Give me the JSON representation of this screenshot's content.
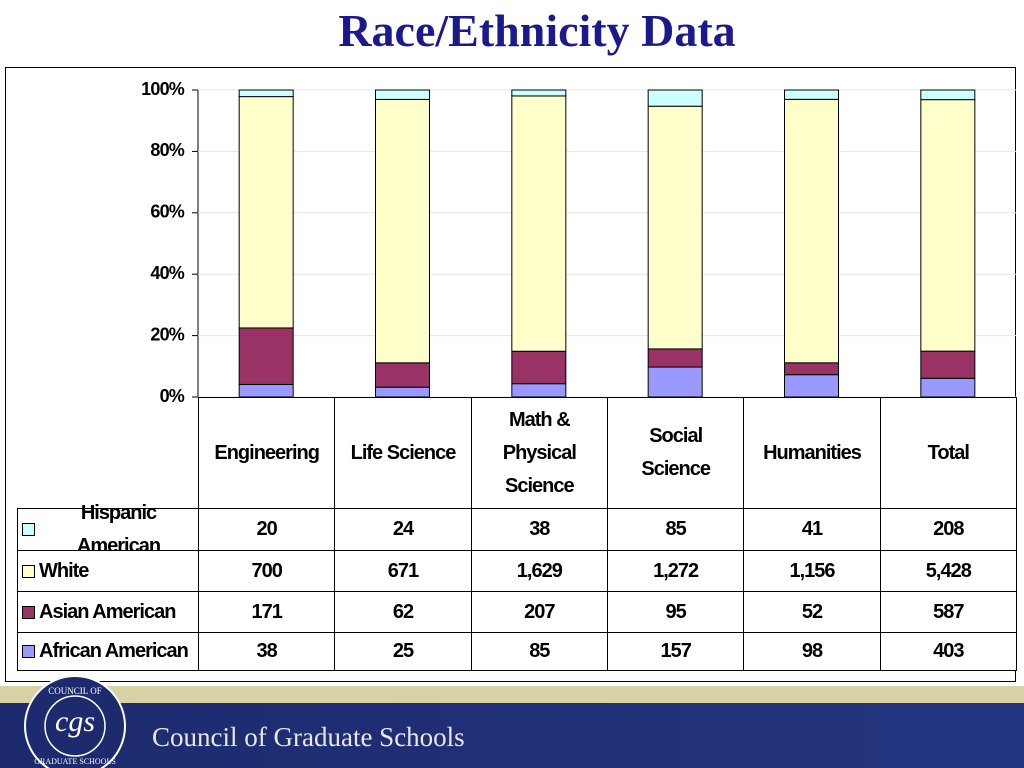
{
  "chart_data": {
    "type": "bar",
    "stacked": "percent",
    "title": "Race/Ethnicity Data",
    "categories": [
      "Engineering",
      "Life Science",
      "Math & Physical Science",
      "Social Science",
      "Humanities",
      "Total"
    ],
    "series": [
      {
        "name": "Hispanic American",
        "color": "#ccffff",
        "values": [
          20,
          24,
          38,
          85,
          41,
          208
        ],
        "value_labels": [
          "20",
          "24",
          "38",
          "85",
          "41",
          "208"
        ]
      },
      {
        "name": "White",
        "color": "#ffffcc",
        "values": [
          700,
          671,
          1629,
          1272,
          1156,
          5428
        ],
        "value_labels": [
          "700",
          "671",
          "1,629",
          "1,272",
          "1,156",
          "5,428"
        ]
      },
      {
        "name": "Asian American",
        "color": "#993366",
        "values": [
          171,
          62,
          207,
          95,
          52,
          587
        ],
        "value_labels": [
          "171",
          "62",
          "207",
          "95",
          "52",
          "587"
        ]
      },
      {
        "name": "African American",
        "color": "#9999ff",
        "values": [
          38,
          25,
          85,
          157,
          98,
          403
        ],
        "value_labels": [
          "38",
          "25",
          "85",
          "157",
          "98",
          "403"
        ]
      }
    ],
    "ylim": [
      0,
      100
    ],
    "yticks": [
      {
        "value": 0,
        "label": "0%"
      },
      {
        "value": 20,
        "label": "20%"
      },
      {
        "value": 40,
        "label": "40%"
      },
      {
        "value": 60,
        "label": "60%"
      },
      {
        "value": 80,
        "label": "80%"
      },
      {
        "value": 100,
        "label": "100%"
      }
    ],
    "grid": true
  },
  "footer": {
    "logo_top": "COUNCIL OF",
    "logo_mark": "cgs",
    "logo_bottom": "GRADUATE SCHOOLS",
    "organization": "Council of Graduate Schools"
  }
}
